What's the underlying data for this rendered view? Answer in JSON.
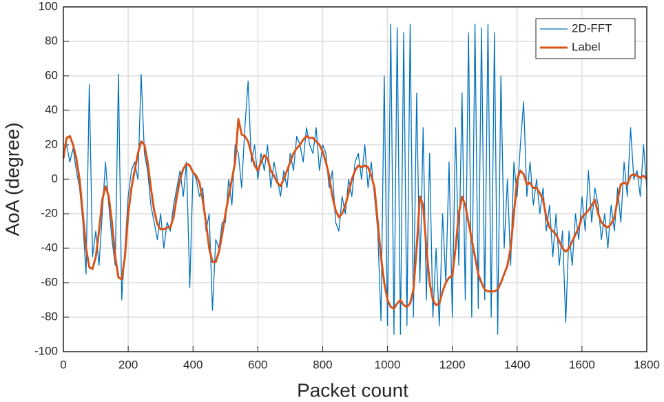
{
  "chart_data": {
    "type": "line",
    "xlabel": "Packet count",
    "ylabel": "AoA (degree)",
    "xlim": [
      0,
      1800
    ],
    "xticks": [
      0,
      200,
      400,
      600,
      800,
      1000,
      1200,
      1400,
      1600,
      1800
    ],
    "ylim": [
      -100,
      100
    ],
    "yticks": [
      -100,
      -80,
      -60,
      -40,
      -20,
      0,
      20,
      40,
      60,
      80,
      100
    ],
    "grid": true,
    "legend": "upper right",
    "x": [
      0,
      10,
      20,
      30,
      40,
      50,
      60,
      70,
      80,
      90,
      100,
      110,
      120,
      130,
      140,
      150,
      160,
      170,
      180,
      190,
      200,
      210,
      220,
      230,
      240,
      250,
      260,
      270,
      280,
      290,
      300,
      310,
      320,
      330,
      340,
      350,
      360,
      370,
      380,
      390,
      400,
      410,
      420,
      430,
      440,
      450,
      460,
      470,
      480,
      490,
      500,
      510,
      520,
      530,
      540,
      550,
      560,
      570,
      580,
      590,
      600,
      610,
      620,
      630,
      640,
      650,
      660,
      670,
      680,
      690,
      700,
      710,
      720,
      730,
      740,
      750,
      760,
      770,
      780,
      790,
      800,
      810,
      820,
      830,
      840,
      850,
      860,
      870,
      880,
      890,
      900,
      910,
      920,
      930,
      940,
      950,
      960,
      970,
      980,
      990,
      1000,
      1010,
      1020,
      1030,
      1040,
      1050,
      1060,
      1070,
      1080,
      1090,
      1100,
      1110,
      1120,
      1130,
      1140,
      1150,
      1160,
      1170,
      1180,
      1190,
      1200,
      1210,
      1220,
      1230,
      1240,
      1250,
      1260,
      1270,
      1280,
      1290,
      1300,
      1310,
      1320,
      1330,
      1340,
      1350,
      1360,
      1370,
      1380,
      1390,
      1400,
      1410,
      1420,
      1430,
      1440,
      1450,
      1460,
      1470,
      1480,
      1490,
      1500,
      1510,
      1520,
      1530,
      1540,
      1550,
      1560,
      1570,
      1580,
      1590,
      1600,
      1610,
      1620,
      1630,
      1640,
      1650,
      1660,
      1670,
      1680,
      1690,
      1700,
      1710,
      1720,
      1730,
      1740,
      1750,
      1760,
      1770,
      1780,
      1790,
      1800
    ],
    "series": [
      {
        "name": "2D-FFT",
        "color": "#0072bd",
        "width": 1.3,
        "values": [
          15,
          20,
          10,
          18,
          5,
          -5,
          -25,
          -55,
          55,
          -45,
          -30,
          -50,
          -20,
          10,
          -15,
          -35,
          -50,
          61,
          -70,
          -40,
          -10,
          5,
          10,
          0,
          61,
          15,
          5,
          -15,
          -25,
          -35,
          -20,
          -40,
          -25,
          -30,
          -15,
          -5,
          5,
          -10,
          10,
          -63,
          5,
          0,
          -10,
          -5,
          -30,
          -20,
          -76,
          -35,
          -40,
          -25,
          -25,
          0,
          -15,
          20,
          15,
          -5,
          30,
          57,
          10,
          20,
          0,
          15,
          5,
          20,
          -5,
          10,
          0,
          -10,
          5,
          -5,
          15,
          5,
          25,
          20,
          10,
          30,
          20,
          15,
          30,
          5,
          20,
          15,
          -5,
          5,
          -25,
          -30,
          -10,
          -20,
          0,
          -10,
          10,
          15,
          0,
          20,
          -5,
          10,
          -10,
          -30,
          -82,
          60,
          -85,
          90,
          -90,
          88,
          -90,
          85,
          -85,
          90,
          -80,
          50,
          -60,
          30,
          -70,
          15,
          -80,
          -40,
          -85,
          -20,
          -60,
          10,
          -80,
          30,
          -50,
          50,
          -70,
          85,
          -80,
          90,
          -75,
          88,
          -70,
          90,
          -80,
          85,
          -90,
          60,
          -40,
          0,
          -50,
          10,
          -10,
          20,
          45,
          -10,
          10,
          -15,
          0,
          -20,
          -5,
          -30,
          -15,
          -45,
          -20,
          -50,
          -30,
          -83,
          -30,
          -50,
          -20,
          -35,
          -10,
          -30,
          5,
          -25,
          -5,
          -15,
          -35,
          -20,
          -40,
          -15,
          -30,
          -5,
          -25,
          10,
          -10,
          30,
          0,
          5,
          -10,
          20,
          -5
        ]
      },
      {
        "name": "Label",
        "color": "#d95319",
        "width": 3,
        "values": [
          12,
          24,
          25,
          20,
          12,
          0,
          -20,
          -40,
          -51,
          -52,
          -45,
          -30,
          -12,
          -4,
          -10,
          -25,
          -45,
          -57,
          -58,
          -45,
          -20,
          -5,
          5,
          15,
          22,
          20,
          10,
          -5,
          -18,
          -26,
          -29,
          -29,
          -28,
          -28,
          -22,
          -10,
          0,
          6,
          9,
          8,
          4,
          2,
          -2,
          -12,
          -25,
          -40,
          -48,
          -48,
          -42,
          -32,
          -20,
          -10,
          0,
          10,
          35,
          26,
          25,
          22,
          15,
          8,
          5,
          10,
          14,
          12,
          5,
          2,
          -2,
          -4,
          0,
          5,
          10,
          15,
          18,
          20,
          23,
          25,
          24,
          24,
          22,
          20,
          16,
          10,
          2,
          -10,
          -18,
          -22,
          -20,
          -15,
          -8,
          0,
          5,
          8,
          7,
          8,
          7,
          2,
          -5,
          -25,
          -45,
          -60,
          -70,
          -74,
          -75,
          -72,
          -70,
          -73,
          -74,
          -72,
          -64,
          -40,
          -10,
          -15,
          -40,
          -60,
          -70,
          -73,
          -72,
          -65,
          -60,
          -57,
          -56,
          -40,
          -20,
          -10,
          -15,
          -25,
          -35,
          -45,
          -55,
          -60,
          -64,
          -65,
          -65,
          -65,
          -64,
          -60,
          -55,
          -50,
          -40,
          -20,
          0,
          5,
          3,
          -3,
          -2,
          -5,
          -5,
          -8,
          -12,
          -22,
          -28,
          -30,
          -32,
          -36,
          -40,
          -42,
          -40,
          -36,
          -32,
          -28,
          -22,
          -20,
          -18,
          -15,
          -12,
          -20,
          -25,
          -27,
          -28,
          -26,
          -22,
          -12,
          -3,
          -2,
          -3,
          2,
          3,
          2,
          1,
          2,
          0
        ]
      }
    ]
  }
}
